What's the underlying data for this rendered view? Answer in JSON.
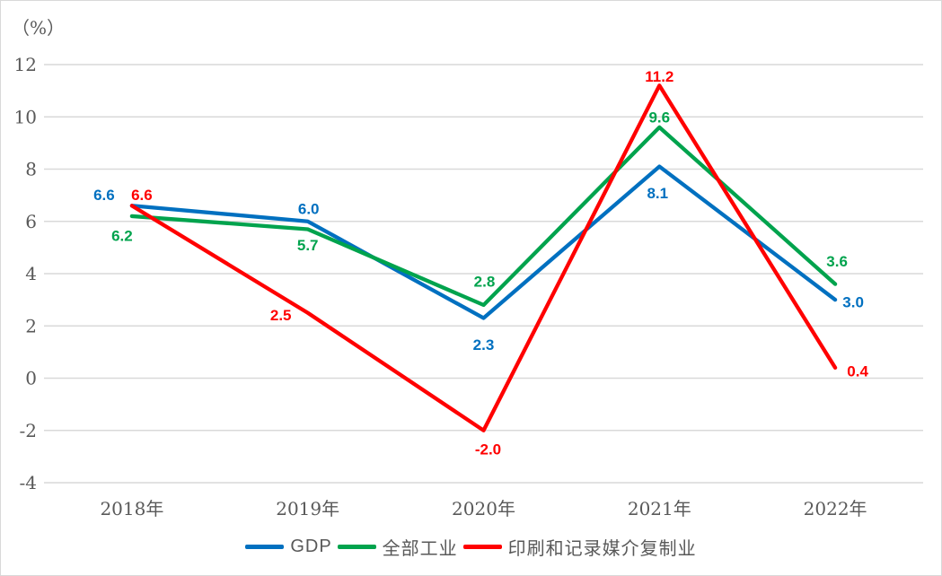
{
  "chart_data": {
    "type": "line",
    "title": "",
    "ylabel": "（%）",
    "xlabel": "",
    "categories": [
      "2018年",
      "2019年",
      "2020年",
      "2021年",
      "2022年"
    ],
    "series": [
      {
        "name": "GDP",
        "color": "#0070C0",
        "values": [
          6.6,
          6.0,
          2.3,
          8.1,
          3.0
        ]
      },
      {
        "name": "全部工业",
        "color": "#00A34D",
        "values": [
          6.2,
          5.7,
          2.8,
          9.6,
          3.6
        ]
      },
      {
        "name": "印刷和记录媒介复制业",
        "color": "#FF0000",
        "values": [
          6.6,
          2.5,
          -2.0,
          11.2,
          0.4
        ]
      }
    ],
    "ylim": [
      -4,
      12
    ],
    "ytick_step": 2,
    "yticks": [
      12,
      10,
      8,
      6,
      4,
      2,
      0,
      -2,
      -4
    ],
    "grid": true,
    "legend_position": "bottom",
    "data_labels_decimals": 1,
    "colors": {
      "gridline": "#D9D9D9",
      "axis_text": "#595959",
      "frame_border": "#D9D9D9",
      "background": "#FFFFFF"
    }
  }
}
